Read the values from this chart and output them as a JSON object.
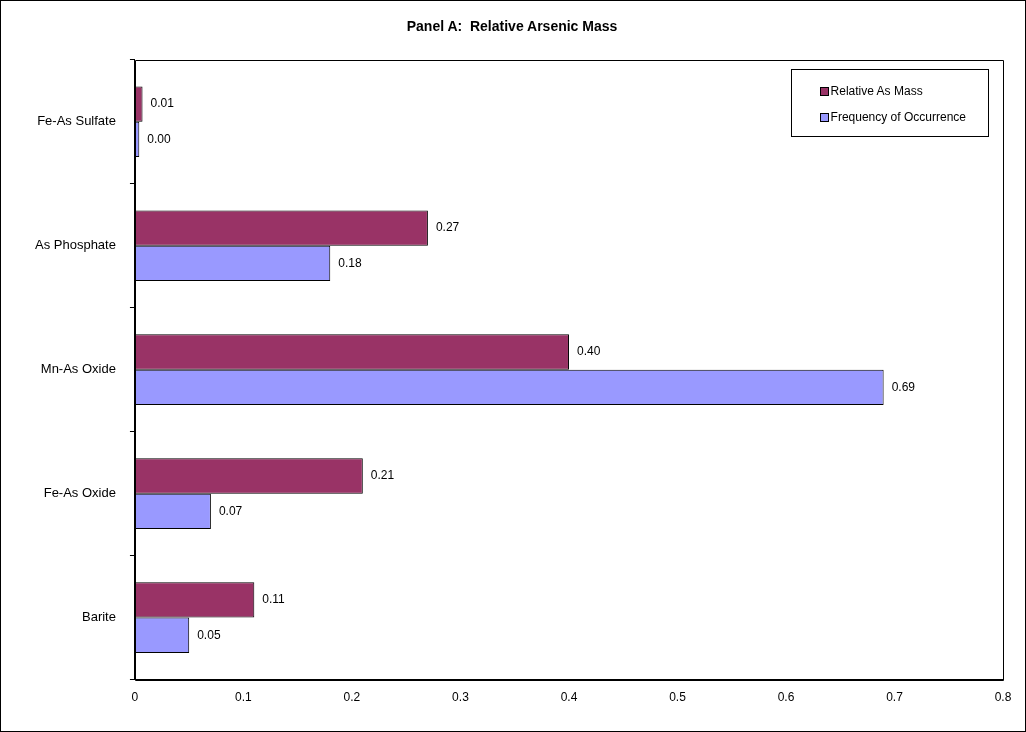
{
  "chart_data": {
    "type": "bar",
    "orientation": "horizontal",
    "title": "Panel A:  Relative Arsenic Mass",
    "categories": [
      "Fe-As Sulfate",
      "As Phosphate",
      "Mn-As Oxide",
      "Fe-As Oxide",
      "Barite"
    ],
    "series": [
      {
        "name": "Relative As Mass",
        "color": "#993366",
        "values": [
          0.007,
          0.27,
          0.4,
          0.21,
          0.11
        ],
        "value_labels": [
          "0.01",
          "0.27",
          "0.40",
          "0.21",
          "0.11"
        ]
      },
      {
        "name": "Frequency of Occurrence",
        "color": "#9999ff",
        "values": [
          0.004,
          0.18,
          0.69,
          0.07,
          0.05
        ],
        "value_labels": [
          "0.00",
          "0.18",
          "0.69",
          "0.07",
          "0.05"
        ]
      }
    ],
    "xlim": [
      0,
      0.8
    ],
    "xticks": [
      0,
      0.1,
      0.2,
      0.3,
      0.4,
      0.5,
      0.6,
      0.7,
      0.8
    ],
    "grid": false,
    "legend": "top right"
  }
}
